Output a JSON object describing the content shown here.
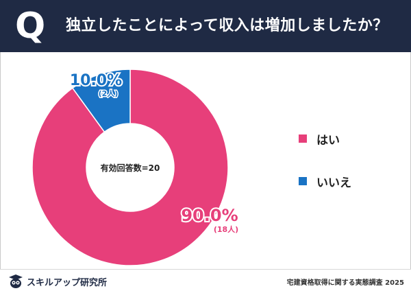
{
  "header": {
    "q_letter": "Q",
    "question": "独立したことによって収入は増加しましたか？"
  },
  "colors": {
    "header_bg": "#1f2a44",
    "yes": "#e73f7a",
    "no": "#1a73c4"
  },
  "chart_data": {
    "type": "pie",
    "donut": true,
    "categories": [
      "はい",
      "いいえ"
    ],
    "values": [
      90.0,
      10.0
    ],
    "counts": [
      18,
      2
    ],
    "percent_labels": [
      "90.0%",
      "10.0%"
    ],
    "count_labels": [
      "(18人)",
      "(2人)"
    ],
    "center_label": "有効回答数=20",
    "legend": [
      "はい",
      "いいえ"
    ],
    "legend_position": "right"
  },
  "footer": {
    "brand": "スキルアップ研究所",
    "source": "宅建資格取得に関する実態調査 2025"
  }
}
